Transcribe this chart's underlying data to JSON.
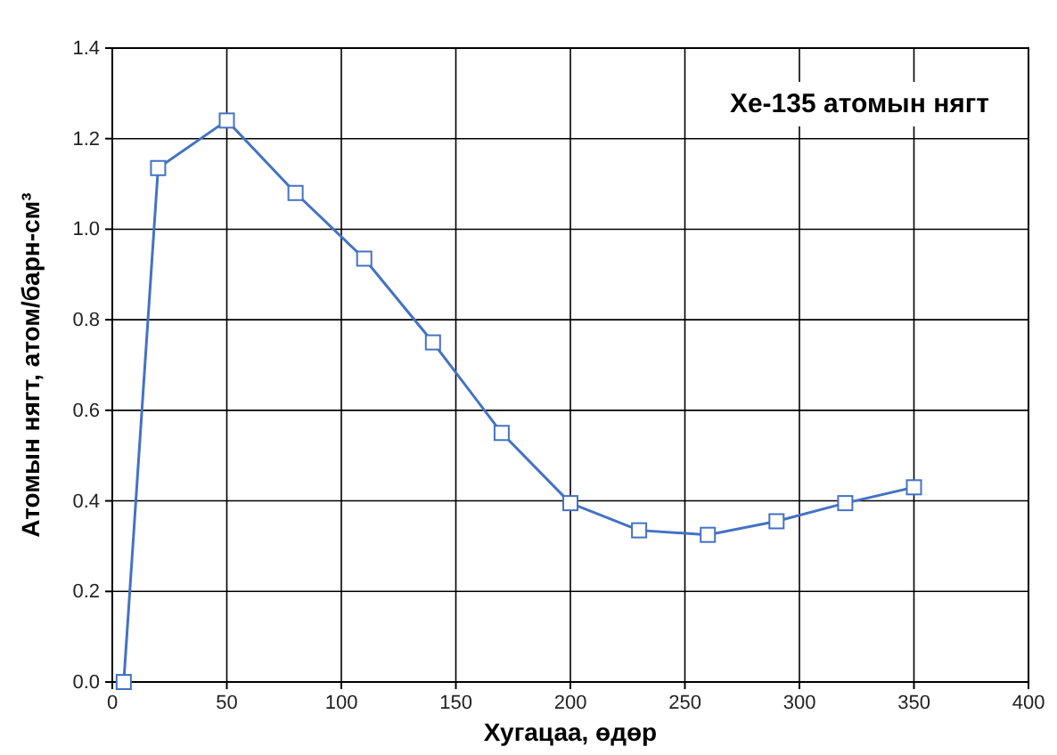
{
  "chart_data": {
    "type": "line",
    "title": "Xe-135 атомын нягт",
    "xlabel": "Хугацаа, өдөр",
    "ylabel": "Атомын нягт, атом/барн-см³",
    "x": [
      5,
      20,
      50,
      80,
      110,
      140,
      170,
      200,
      230,
      260,
      290,
      320,
      350
    ],
    "series": [
      {
        "color": "#4472c4",
        "values": [
          0,
          1.135,
          1.24,
          1.08,
          0.935,
          0.75,
          0.55,
          0.395,
          0.335,
          0.325,
          0.355,
          0.395,
          0.43
        ]
      }
    ],
    "xlim": [
      0,
      400
    ],
    "xticks": [
      0,
      50,
      100,
      150,
      200,
      250,
      300,
      350,
      400
    ],
    "ylim": [
      0,
      1.4
    ],
    "yticks": [
      {
        "value": 0,
        "label": "0.0"
      },
      {
        "value": 0.2,
        "label": "0.2"
      },
      {
        "value": 0.4,
        "label": "0.4"
      },
      {
        "value": 0.6,
        "label": "0.6"
      },
      {
        "value": 0.8,
        "label": "0.8"
      },
      {
        "value": 1,
        "label": "1.0"
      },
      {
        "value": 1.2,
        "label": "1.2"
      },
      {
        "value": 1.4,
        "label": "1.4"
      }
    ],
    "grid": true,
    "marker": "square",
    "line_style": "solid"
  }
}
